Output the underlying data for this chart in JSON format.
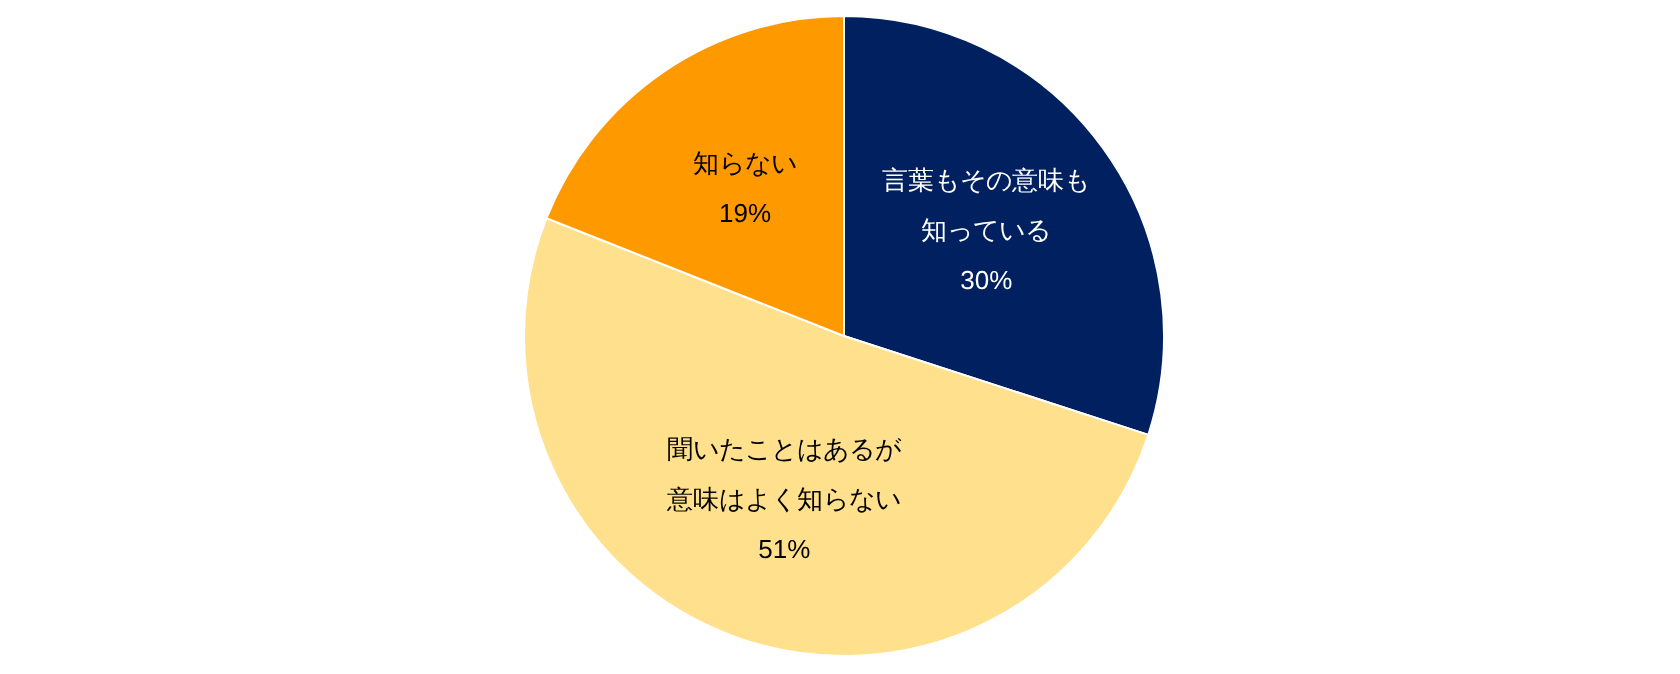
{
  "chart_data": {
    "type": "pie",
    "categories": [
      "言葉もその意味も知っている",
      "聞いたことはあるが意味はよく知らない",
      "知らない"
    ],
    "values": [
      30,
      51,
      19
    ],
    "colors": [
      "#002060",
      "#ffe08c",
      "#ff9900"
    ],
    "value_labels": [
      "30%",
      "51%",
      "19%"
    ]
  }
}
